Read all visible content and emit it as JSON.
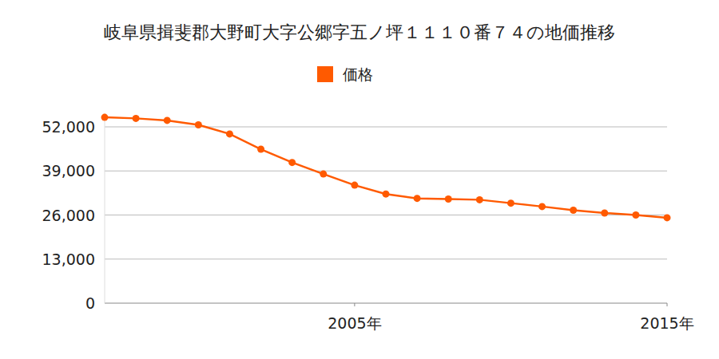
{
  "chart_data": {
    "type": "line",
    "title": "岐阜県揖斐郡大野町大字公郷字五ノ坪１１１０番７４の地価推移",
    "x": [
      1997,
      1998,
      1999,
      2000,
      2001,
      2002,
      2003,
      2004,
      2005,
      2006,
      2007,
      2008,
      2009,
      2010,
      2011,
      2012,
      2013,
      2014,
      2015
    ],
    "series": [
      {
        "name": "価格",
        "color": "#ff5a00",
        "marker": "circle",
        "values": [
          54800,
          54500,
          53900,
          52600,
          49900,
          45400,
          41500,
          38100,
          34800,
          32200,
          30900,
          30700,
          30500,
          29500,
          28500,
          27400,
          26600,
          26000,
          25200
        ]
      }
    ],
    "xlim": [
      1997,
      2015
    ],
    "xticks": [
      {
        "value": 2005,
        "label": "2005年"
      },
      {
        "value": 2015,
        "label": "2015年"
      }
    ],
    "ylim": [
      0,
      56000
    ],
    "yticks": [
      0,
      {
        "value": 13000,
        "label": "13,000"
      },
      {
        "value": 26000,
        "label": "26,000"
      },
      {
        "value": 39000,
        "label": "39,000"
      },
      {
        "value": 52000,
        "label": "52,000"
      }
    ],
    "grid": true,
    "legend": "top"
  }
}
